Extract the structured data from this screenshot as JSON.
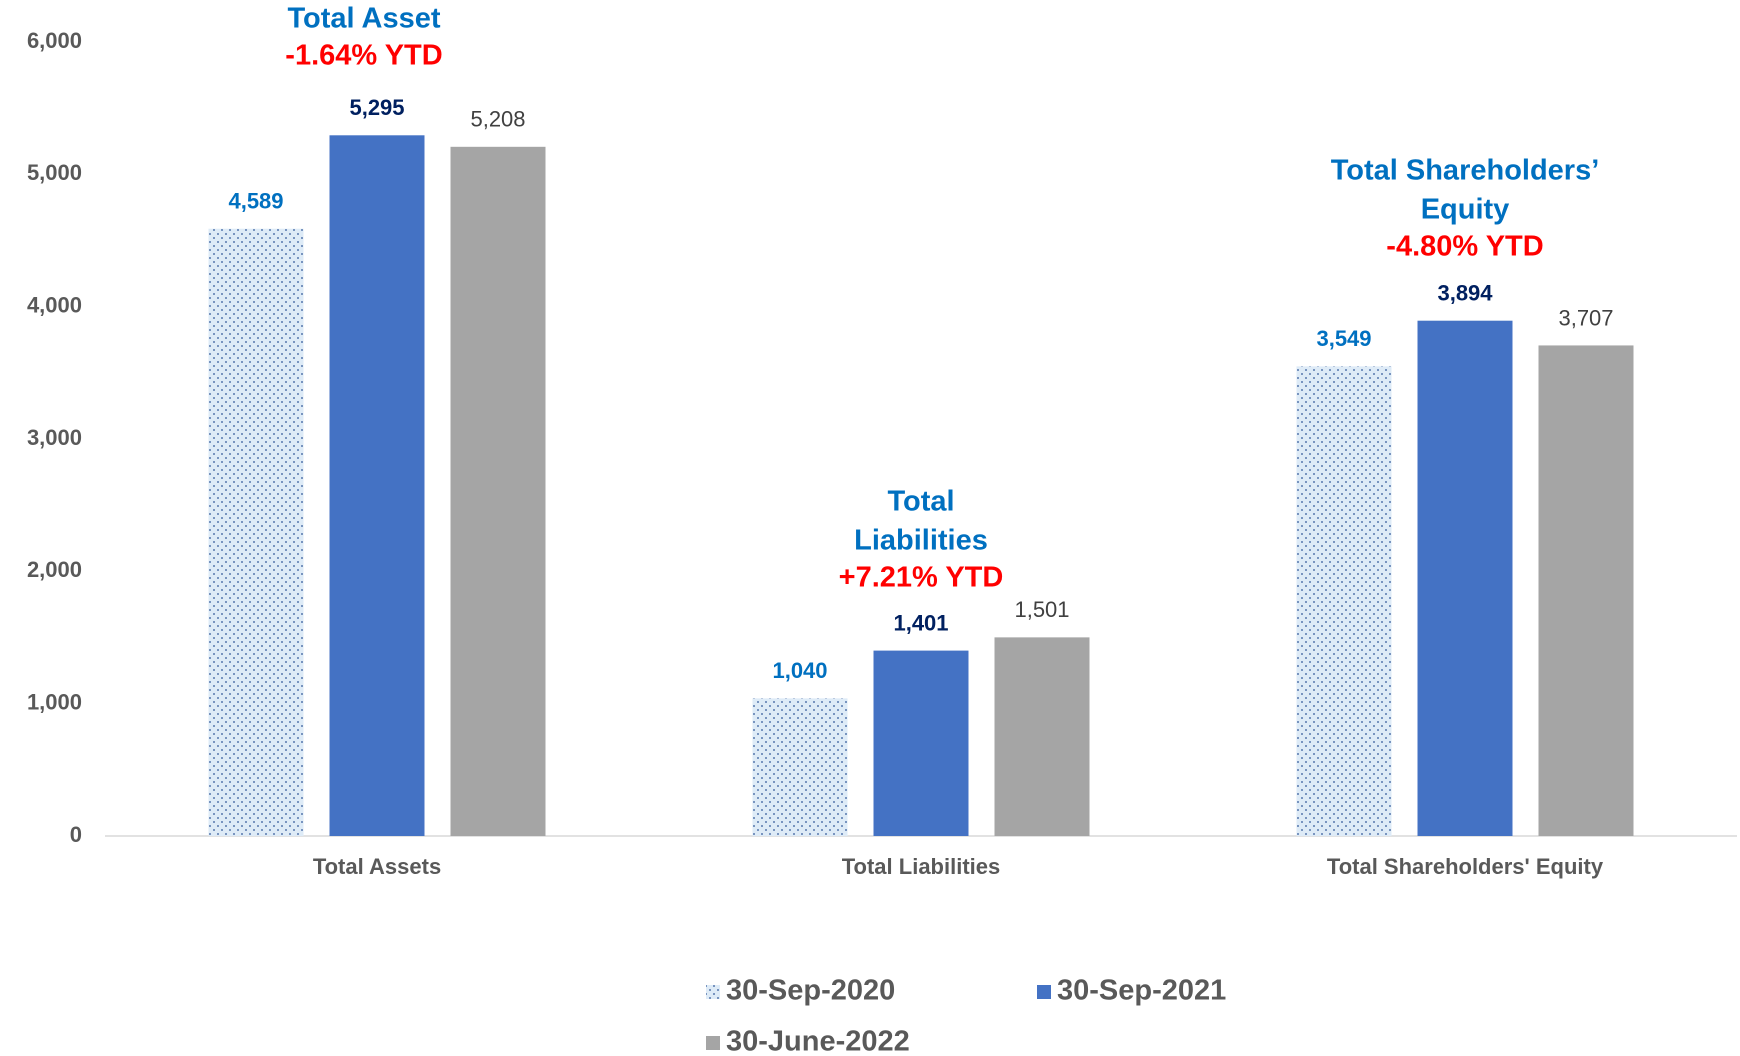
{
  "chart_data": {
    "type": "bar",
    "categories": [
      "Total Assets",
      "Total Liabilities",
      "Total Shareholders' Equity"
    ],
    "series": [
      {
        "name": "30-Sep-2020",
        "color": "#deebf7",
        "values": [
          4589,
          1040,
          3549
        ],
        "value_labels": [
          "4,589",
          "1,040",
          "3,549"
        ]
      },
      {
        "name": "30-Sep-2021",
        "color": "#4472c4",
        "values": [
          5295,
          1401,
          3894
        ],
        "value_labels": [
          "5,295",
          "1,401",
          "3,894"
        ]
      },
      {
        "name": "30-June-2022",
        "color": "#a5a5a5",
        "values": [
          5208,
          1501,
          3707
        ],
        "value_labels": [
          "5,208",
          "1,501",
          "3,707"
        ]
      }
    ],
    "ylim": [
      0,
      6000
    ],
    "yticks": [
      0,
      {
        "value": 1000,
        "label": "1,000"
      },
      {
        "value": 2000,
        "label": "2,000"
      },
      {
        "value": 3000,
        "label": "3,000"
      },
      {
        "value": 4000,
        "label": "4,000"
      },
      {
        "value": 5000,
        "label": "5,000"
      },
      {
        "value": 6000,
        "label": "6,000"
      }
    ],
    "grid": false,
    "legend": "bottom",
    "annotations": [
      {
        "lines": [
          "Total Asset"
        ],
        "change": "-1.64% YTD"
      },
      {
        "lines": [
          "Total",
          "Liabilities"
        ],
        "change": "+7.21% YTD"
      },
      {
        "lines": [
          "Total Shareholders’",
          "Equity"
        ],
        "change": "-4.80% YTD"
      }
    ]
  }
}
